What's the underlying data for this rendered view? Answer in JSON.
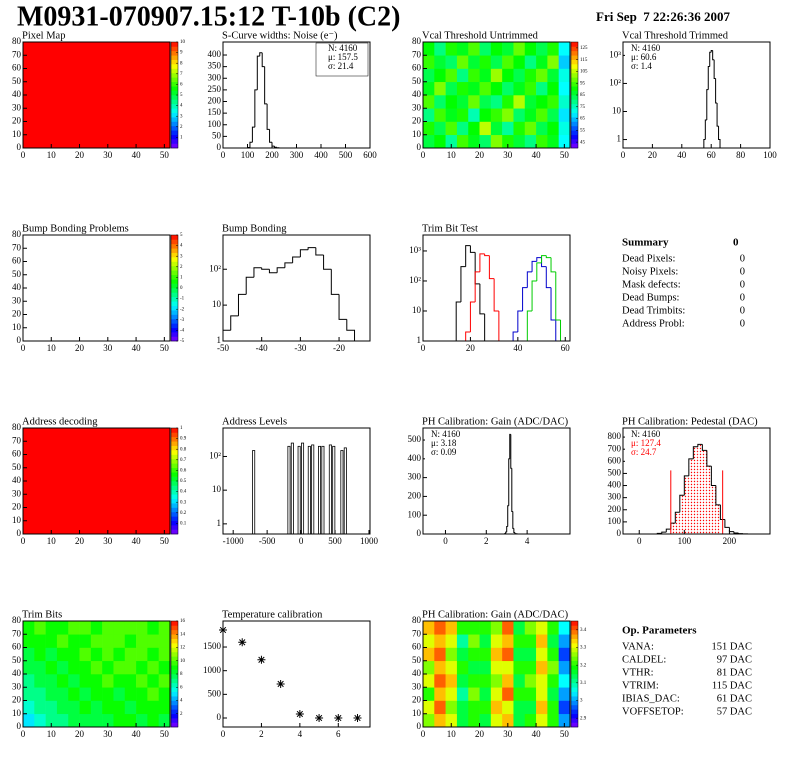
{
  "header": {
    "title": "M0931-070907.15:12 T-10b (C2)",
    "date": "Fri Sep  7 22:26:36 2007"
  },
  "summary": {
    "title": "Summary",
    "total": 0,
    "rows": [
      [
        "Dead Pixels:",
        0
      ],
      [
        "Noisy Pixels:",
        0
      ],
      [
        "Mask defects:",
        0
      ],
      [
        "Dead Bumps:",
        0
      ],
      [
        "Dead Trimbits:",
        0
      ],
      [
        "Address Probl:",
        0
      ]
    ]
  },
  "parameters": {
    "title": "Op. Parameters",
    "rows": [
      [
        "VANA:",
        "151 DAC"
      ],
      [
        "CALDEL:",
        "97 DAC"
      ],
      [
        "VTHR:",
        "81 DAC"
      ],
      [
        "VTRIM:",
        "115 DAC"
      ],
      [
        "IBIAS_DAC:",
        "61 DAC"
      ],
      [
        "VOFFSETOP:",
        "57 DAC"
      ]
    ]
  },
  "chart_data": [
    {
      "type": "heatmap",
      "title": "Pixel Map",
      "xlim": [
        0,
        52
      ],
      "ylim": [
        0,
        80
      ],
      "xticks": [
        0,
        10,
        20,
        30,
        40,
        50
      ],
      "yticks": [
        0,
        10,
        20,
        30,
        40,
        50,
        60,
        70,
        80
      ],
      "zlim": [
        0,
        10
      ],
      "zticks": [
        1,
        2,
        3,
        4,
        5,
        6,
        7,
        8,
        9,
        10
      ],
      "values": [
        [
          10
        ]
      ]
    },
    {
      "type": "histogram",
      "title": "S-Curve widths: Noise (e⁻)",
      "xlim": [
        0,
        600
      ],
      "ylim": [
        0,
        456
      ],
      "xticks": [
        0,
        100,
        200,
        300,
        400,
        500,
        600
      ],
      "yticks": [
        0,
        50,
        100,
        150,
        200,
        250,
        300,
        350,
        400
      ],
      "bins": [
        100,
        110,
        120,
        130,
        140,
        150,
        160,
        170,
        180,
        190,
        200,
        210,
        220,
        230,
        240
      ],
      "series": [
        {
          "color": "#000000",
          "values": [
            2,
            25,
            90,
            250,
            395,
            410,
            350,
            190,
            80,
            25,
            8,
            3,
            1,
            0
          ]
        }
      ],
      "stats_corner": "upper right",
      "stats": [
        {
          "text": "N: 4160"
        },
        {
          "text": "μ: 157.5"
        },
        {
          "text": "σ: 21.4"
        }
      ]
    },
    {
      "type": "heatmap",
      "title": "Vcal Threshold Untrimmed",
      "xlim": [
        0,
        52
      ],
      "ylim": [
        0,
        80
      ],
      "xticks": [
        0,
        10,
        20,
        30,
        40,
        50
      ],
      "yticks": [
        0,
        10,
        20,
        30,
        40,
        50,
        60,
        70,
        80
      ],
      "zlim": [
        40,
        130
      ],
      "zticks": [
        45,
        55,
        65,
        75,
        85,
        95,
        105,
        115,
        125
      ],
      "values": [
        [
          85,
          90,
          78,
          95,
          88,
          82,
          100,
          92,
          86,
          80,
          94,
          88,
          70
        ],
        [
          92,
          84,
          96,
          80,
          90,
          105,
          86,
          78,
          92,
          98,
          84,
          90,
          72
        ],
        [
          80,
          95,
          88,
          92,
          76,
          90,
          94,
          100,
          82,
          88,
          96,
          84,
          68
        ],
        [
          96,
          82,
          90,
          86,
          98,
          84,
          80,
          92,
          104,
          86,
          90,
          94,
          74
        ],
        [
          88,
          100,
          84,
          92,
          88,
          96,
          90,
          82,
          88,
          94,
          80,
          90,
          70
        ],
        [
          84,
          90,
          96,
          80,
          94,
          88,
          102,
          90,
          84,
          92,
          98,
          86,
          72
        ],
        [
          94,
          86,
          82,
          98,
          86,
          92,
          84,
          96,
          90,
          80,
          88,
          100,
          66
        ],
        [
          90,
          80,
          92,
          88,
          96,
          82,
          90,
          86,
          98,
          90,
          84,
          92,
          70
        ]
      ]
    },
    {
      "type": "histogram",
      "title": "Vcal Threshold Trimmed",
      "logy": true,
      "xlim": [
        0,
        100
      ],
      "ylim": [
        0.5,
        3000
      ],
      "xticks": [
        0,
        20,
        40,
        60,
        80,
        100
      ],
      "yticks": [
        1,
        10,
        {
          "value": 100,
          "label": "10²"
        },
        {
          "value": 1000,
          "label": "10³"
        }
      ],
      "bins": [
        55,
        56,
        57,
        58,
        59,
        60,
        61,
        62,
        63,
        64,
        65,
        66
      ],
      "series": [
        {
          "color": "#000000",
          "values": [
            1,
            5,
            60,
            400,
            1300,
            1500,
            700,
            150,
            20,
            3,
            1
          ]
        }
      ],
      "stats_corner": "upper left",
      "stats": [
        {
          "text": "N: 4160"
        },
        {
          "text": "μ: 60.6"
        },
        {
          "text": "σ:  1.4"
        }
      ]
    },
    {
      "type": "heatmap",
      "title": "Bump Bonding Problems",
      "xlim": [
        0,
        52
      ],
      "ylim": [
        0,
        80
      ],
      "xticks": [
        0,
        10,
        20,
        30,
        40,
        50
      ],
      "yticks": [
        0,
        10,
        20,
        30,
        40,
        50,
        60,
        70,
        80
      ],
      "zlim": [
        -5,
        5
      ],
      "zticks": [
        -5,
        -4,
        -3,
        -2,
        -1,
        0,
        1,
        2,
        3,
        4,
        5
      ],
      "values": []
    },
    {
      "type": "histogram",
      "title": "Bump Bonding",
      "logy": true,
      "xlim": [
        -50,
        -12
      ],
      "ylim": [
        1,
        900
      ],
      "xticks": [
        -50,
        -40,
        -30,
        -20
      ],
      "yticks": [
        1,
        10,
        {
          "value": 100,
          "label": "10²"
        }
      ],
      "bins": [
        -50,
        -48,
        -46,
        -44,
        -42,
        -40,
        -38,
        -36,
        -34,
        -32,
        -30,
        -28,
        -26,
        -24,
        -22,
        -20,
        -18,
        -16
      ],
      "series": [
        {
          "color": "#000000",
          "values": [
            2,
            5,
            20,
            60,
            110,
            100,
            80,
            110,
            150,
            220,
            350,
            400,
            250,
            100,
            20,
            4,
            2
          ]
        }
      ]
    },
    {
      "type": "histogram",
      "title": "Trim Bit Test",
      "logy": true,
      "xlim": [
        0,
        62
      ],
      "ylim": [
        1,
        3400
      ],
      "xticks": [
        0,
        20,
        40,
        60
      ],
      "yticks": [
        1,
        10,
        {
          "value": 100,
          "label": "10²"
        },
        {
          "value": 1000,
          "label": "10³"
        }
      ],
      "bins": [
        14,
        16,
        18,
        20,
        22,
        24,
        26,
        28,
        30,
        32,
        34,
        36,
        38,
        40,
        42,
        44,
        46,
        48,
        50,
        52,
        54,
        56,
        58,
        60
      ],
      "series": [
        {
          "color": "#000000",
          "values": [
            20,
            300,
            1500,
            900,
            80,
            8,
            1,
            0,
            0,
            0,
            0,
            0,
            0,
            0,
            0,
            0,
            0,
            0,
            0,
            0,
            0,
            0,
            0
          ]
        },
        {
          "color": "#ff0000",
          "values": [
            0,
            0,
            2,
            20,
            200,
            800,
            700,
            120,
            10,
            1,
            0,
            0,
            0,
            0,
            0,
            0,
            0,
            0,
            0,
            0,
            0,
            0,
            0
          ]
        },
        {
          "color": "#0000cc",
          "values": [
            0,
            0,
            0,
            0,
            0,
            0,
            0,
            0,
            0,
            0,
            0,
            0,
            2,
            10,
            60,
            200,
            450,
            600,
            300,
            60,
            5,
            0,
            0
          ]
        },
        {
          "color": "#00cc00",
          "values": [
            0,
            0,
            0,
            0,
            0,
            0,
            0,
            0,
            0,
            0,
            0,
            0,
            0,
            0,
            1,
            10,
            100,
            400,
            700,
            600,
            200,
            5,
            0
          ]
        }
      ]
    },
    {
      "type": "heatmap",
      "title": "Address decoding",
      "xlim": [
        0,
        52
      ],
      "ylim": [
        0,
        80
      ],
      "xticks": [
        0,
        10,
        20,
        30,
        40,
        50
      ],
      "yticks": [
        0,
        10,
        20,
        30,
        40,
        50,
        60,
        70,
        80
      ],
      "zlim": [
        0,
        1
      ],
      "zticks": [
        0.1,
        0.2,
        0.3,
        0.4,
        0.5,
        0.6,
        0.7,
        0.8,
        0.9,
        1
      ],
      "values": [
        [
          1
        ]
      ]
    },
    {
      "type": "spikes",
      "title": "Address Levels",
      "logy": true,
      "xlim": [
        -1150,
        1015
      ],
      "ylim": [
        0.5,
        700
      ],
      "xticks": [
        -1000,
        -500,
        0,
        500,
        1000
      ],
      "yticks": [
        1,
        10,
        {
          "value": 100,
          "label": "10²"
        }
      ],
      "color": "#000000",
      "x": [
        -700,
        -180,
        -130,
        -30,
        20,
        120,
        170,
        270,
        320,
        430,
        480,
        600,
        650
      ],
      "values": [
        150,
        200,
        250,
        200,
        250,
        200,
        220,
        200,
        200,
        220,
        200,
        150,
        180
      ]
    },
    {
      "type": "histogram",
      "title": "PH Calibration: Gain (ADC/DAC)",
      "xlim": [
        -1.1,
        6.1
      ],
      "ylim": [
        0,
        564
      ],
      "xticks": [
        0,
        2,
        4
      ],
      "yticks": [
        0,
        100,
        200,
        300,
        400,
        500
      ],
      "bins": [
        2.9,
        2.95,
        3.0,
        3.05,
        3.1,
        3.15,
        3.2,
        3.25,
        3.3,
        3.35,
        3.4,
        3.45,
        3.5
      ],
      "series": [
        {
          "color": "#000000",
          "values": [
            2,
            10,
            40,
            150,
            400,
            530,
            350,
            120,
            30,
            8,
            2,
            1
          ]
        }
      ],
      "stats_corner": "upper left",
      "stats": [
        {
          "text": "N: 4160"
        },
        {
          "text": "μ: 3.18"
        },
        {
          "text": "σ: 0.09"
        }
      ]
    },
    {
      "type": "histogram",
      "title": "PH Calibration: Pedestal (DAC)",
      "xlim": [
        -36,
        290
      ],
      "ylim": [
        0,
        875
      ],
      "xticks": [
        0,
        100,
        200
      ],
      "yticks": [
        0,
        100,
        200,
        300,
        400,
        500,
        600,
        700,
        800
      ],
      "bins": [
        40,
        50,
        60,
        70,
        80,
        90,
        100,
        110,
        120,
        130,
        140,
        150,
        160,
        170,
        180,
        190,
        200,
        210,
        220,
        230,
        240
      ],
      "series": [
        {
          "color": "#ff0000",
          "pattern": "dots",
          "values": [
            0,
            0,
            0,
            90,
            180,
            320,
            480,
            620,
            720,
            740,
            690,
            560,
            400,
            240,
            0,
            0,
            0,
            0,
            0,
            0
          ]
        },
        {
          "color": "#000000",
          "values": [
            5,
            15,
            40,
            90,
            180,
            320,
            480,
            620,
            720,
            740,
            690,
            560,
            400,
            240,
            120,
            55,
            20,
            8,
            3,
            1
          ]
        }
      ],
      "cut_lines": [
        70,
        185
      ],
      "cut_color": "#ff0000",
      "stats_corner": "upper left",
      "stats": [
        {
          "text": "N: 4160"
        },
        {
          "text": "μ: 127.4",
          "color": "#ff0000"
        },
        {
          "text": "σ: 24.7",
          "color": "#ff0000"
        }
      ]
    },
    {
      "type": "heatmap",
      "title": "Trim Bits",
      "xlim": [
        0,
        52
      ],
      "ylim": [
        0,
        80
      ],
      "xticks": [
        0,
        10,
        20,
        30,
        40,
        50
      ],
      "yticks": [
        0,
        10,
        20,
        30,
        40,
        50,
        60,
        70,
        80
      ],
      "zlim": [
        0,
        16
      ],
      "zticks": [
        2,
        4,
        6,
        8,
        10,
        12,
        14,
        16
      ],
      "values": [
        [
          5,
          6,
          7,
          7,
          8,
          8,
          8,
          8,
          9,
          9,
          8,
          9,
          8
        ],
        [
          6,
          7,
          7,
          8,
          8,
          9,
          8,
          9,
          9,
          8,
          9,
          9,
          9
        ],
        [
          7,
          7,
          8,
          8,
          9,
          8,
          9,
          9,
          8,
          9,
          9,
          10,
          9
        ],
        [
          7,
          8,
          8,
          9,
          8,
          9,
          9,
          10,
          9,
          9,
          10,
          9,
          10
        ],
        [
          8,
          8,
          9,
          8,
          9,
          9,
          10,
          9,
          10,
          10,
          9,
          10,
          9
        ],
        [
          8,
          9,
          8,
          9,
          9,
          10,
          9,
          10,
          9,
          10,
          10,
          9,
          10
        ],
        [
          9,
          9,
          9,
          10,
          9,
          9,
          10,
          10,
          10,
          9,
          10,
          10,
          10
        ],
        [
          9,
          10,
          9,
          9,
          10,
          10,
          9,
          10,
          10,
          10,
          10,
          9,
          10
        ]
      ]
    },
    {
      "type": "scatter",
      "title": "Temperature calibration",
      "xlim": [
        0,
        7.65
      ],
      "ylim": [
        -190,
        2050
      ],
      "xticks": [
        0,
        2,
        4,
        6
      ],
      "yticks": [
        0,
        500,
        1000,
        1500
      ],
      "color": "#000000",
      "marker": "star",
      "x": [
        0,
        1,
        2,
        3,
        4,
        5,
        6,
        7
      ],
      "values": [
        1860,
        1600,
        1230,
        720,
        85,
        0,
        0,
        0
      ]
    },
    {
      "type": "heatmap",
      "title": "PH Calibration: Gain (ADC/DAC)",
      "xlim": [
        0,
        52
      ],
      "ylim": [
        0,
        80
      ],
      "xticks": [
        0,
        10,
        20,
        30,
        40,
        50
      ],
      "yticks": [
        0,
        10,
        20,
        30,
        40,
        50,
        60,
        70,
        80
      ],
      "zlim": [
        2.85,
        3.45
      ],
      "zticks": [
        2.9,
        3,
        3.1,
        3.2,
        3.3,
        3.4
      ],
      "values": [
        [
          3.25,
          3.35,
          3.3,
          3.15,
          3.2,
          3.15,
          3.3,
          3.35,
          3.15,
          3.2,
          3.3,
          3.2,
          3.0
        ],
        [
          3.3,
          3.4,
          3.25,
          3.15,
          3.2,
          3.2,
          3.35,
          3.3,
          3.15,
          3.15,
          3.35,
          3.2,
          2.95
        ],
        [
          3.2,
          3.35,
          3.3,
          3.1,
          3.25,
          3.15,
          3.3,
          3.4,
          3.2,
          3.2,
          3.3,
          3.15,
          3.0
        ],
        [
          3.3,
          3.4,
          3.35,
          3.15,
          3.2,
          3.2,
          3.25,
          3.35,
          3.15,
          3.25,
          3.3,
          3.2,
          3.05
        ],
        [
          3.25,
          3.35,
          3.3,
          3.2,
          3.15,
          3.15,
          3.3,
          3.3,
          3.2,
          3.2,
          3.35,
          3.25,
          3.0
        ],
        [
          3.35,
          3.4,
          3.25,
          3.15,
          3.2,
          3.2,
          3.35,
          3.4,
          3.15,
          3.15,
          3.3,
          3.2,
          2.95
        ],
        [
          3.3,
          3.35,
          3.3,
          3.1,
          3.25,
          3.15,
          3.3,
          3.35,
          3.2,
          3.2,
          3.35,
          3.15,
          3.0
        ],
        [
          3.35,
          3.4,
          3.35,
          3.2,
          3.2,
          3.2,
          3.25,
          3.4,
          3.15,
          3.25,
          3.3,
          3.2,
          3.05
        ]
      ]
    }
  ]
}
